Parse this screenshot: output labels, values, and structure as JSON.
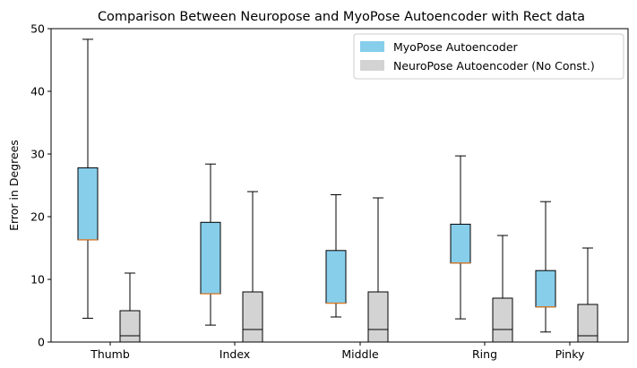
{
  "chart_data": {
    "type": "box",
    "title": "Comparison Between Neuropose and MyoPose Autoencoder with Rect data",
    "xlabel": "",
    "ylabel": "Error in Degrees",
    "ylim": [
      0,
      50
    ],
    "yticks": [
      0,
      10,
      20,
      30,
      40,
      50
    ],
    "categories": [
      "Thumb",
      "Index",
      "Middle",
      "Ring",
      "Pinky"
    ],
    "grid": false,
    "legend_position": "top-right",
    "series": [
      {
        "name": "MyoPose Autoencoder",
        "color": "#87ceeb",
        "boxes": [
          {
            "whislo": 3.8,
            "q1": 16.3,
            "med": 16.3,
            "q3": 27.8,
            "whishi": 48.3
          },
          {
            "whislo": 2.7,
            "q1": 7.7,
            "med": 7.7,
            "q3": 19.1,
            "whishi": 28.4
          },
          {
            "whislo": 4.0,
            "q1": 6.2,
            "med": 6.2,
            "q3": 14.6,
            "whishi": 23.5
          },
          {
            "whislo": 3.7,
            "q1": 12.6,
            "med": 12.6,
            "q3": 18.8,
            "whishi": 29.7
          },
          {
            "whislo": 1.6,
            "q1": 5.6,
            "med": 5.6,
            "q3": 11.4,
            "whishi": 22.4
          }
        ]
      },
      {
        "name": "NeuroPose Autoencoder (No Const.)",
        "color": "#d3d3d3",
        "boxes": [
          {
            "whislo": 0,
            "q1": 0,
            "med": 1.0,
            "q3": 5.0,
            "whishi": 11.0
          },
          {
            "whislo": 0,
            "q1": 0,
            "med": 2.0,
            "q3": 8.0,
            "whishi": 24.0
          },
          {
            "whislo": 0,
            "q1": 0,
            "med": 2.0,
            "q3": 8.0,
            "whishi": 23.0
          },
          {
            "whislo": 0,
            "q1": 0,
            "med": 2.0,
            "q3": 7.0,
            "whishi": 17.0
          },
          {
            "whislo": 0,
            "q1": 0,
            "med": 1.0,
            "q3": 6.0,
            "whishi": 15.0
          }
        ]
      }
    ]
  }
}
